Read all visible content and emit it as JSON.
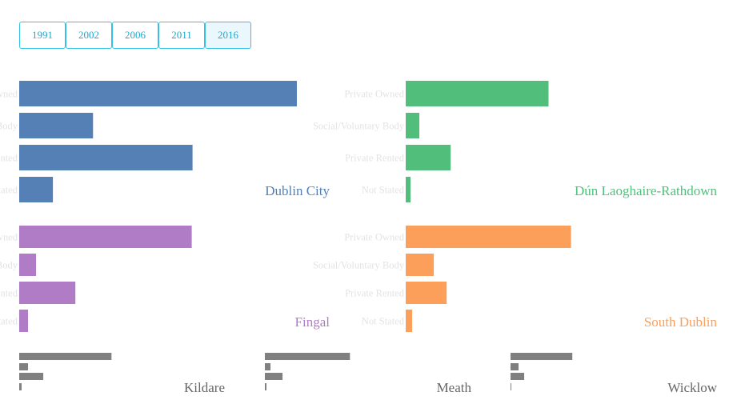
{
  "years": [
    "1991",
    "2002",
    "2006",
    "2011",
    "2016"
  ],
  "selected_year": "2016",
  "chart_data": {
    "type": "bar",
    "orientation": "horizontal",
    "categories": [
      "Private Owned",
      "Social/Voluntary Body",
      "Private Rented",
      "Not Stated"
    ],
    "series": [
      {
        "name": "Dublin City",
        "color": "#5480b5",
        "values": [
          346,
          92,
          216,
          42
        ]
      },
      {
        "name": "Dún Laoghaire-Rathdown",
        "color": "#52be7c",
        "values": [
          178,
          17,
          56,
          6
        ]
      },
      {
        "name": "Fingal",
        "color": "#b07cc6",
        "values": [
          215,
          21,
          70,
          11
        ]
      },
      {
        "name": "South Dublin",
        "color": "#fb9f5b",
        "values": [
          206,
          35,
          51,
          8
        ]
      },
      {
        "name": "Kildare",
        "color": "#808080",
        "values": [
          115,
          11,
          30,
          3
        ]
      },
      {
        "name": "Meath",
        "color": "#808080",
        "values": [
          106,
          7,
          22,
          2
        ]
      },
      {
        "name": "Wicklow",
        "color": "#808080",
        "values": [
          77,
          10,
          17,
          1
        ]
      }
    ]
  }
}
